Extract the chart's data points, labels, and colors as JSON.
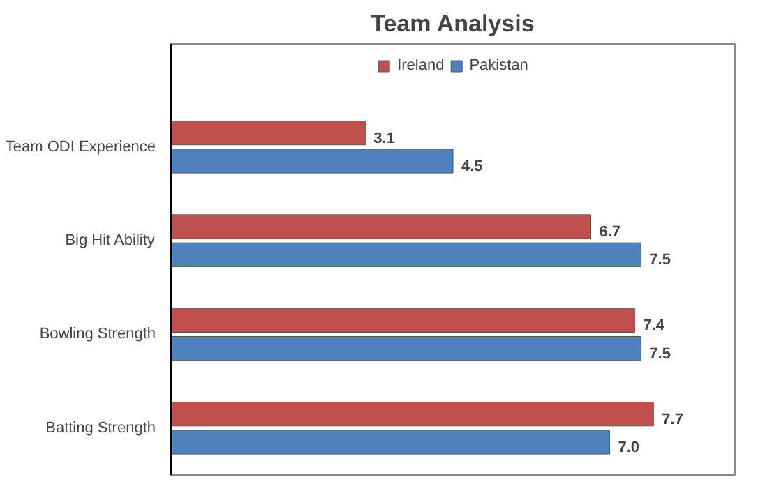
{
  "chart_data": {
    "type": "bar",
    "orientation": "horizontal",
    "title": "Team Analysis",
    "categories": [
      "Team ODI Experience",
      "Big Hit Ability",
      "Bowling Strength",
      "Batting Strength"
    ],
    "series": [
      {
        "name": "Ireland",
        "color": "#c0504d",
        "values": [
          3.1,
          6.7,
          7.4,
          7.7
        ],
        "value_labels": [
          "3.1",
          "6.7",
          "7.4",
          "7.7"
        ]
      },
      {
        "name": "Pakistan",
        "color": "#4f81bd",
        "values": [
          4.5,
          7.5,
          7.5,
          7.0
        ],
        "value_labels": [
          "4.5",
          "7.5",
          "7.5",
          "7.0"
        ]
      }
    ],
    "xlim": [
      0,
      9
    ],
    "legend": "top",
    "grid": false
  }
}
